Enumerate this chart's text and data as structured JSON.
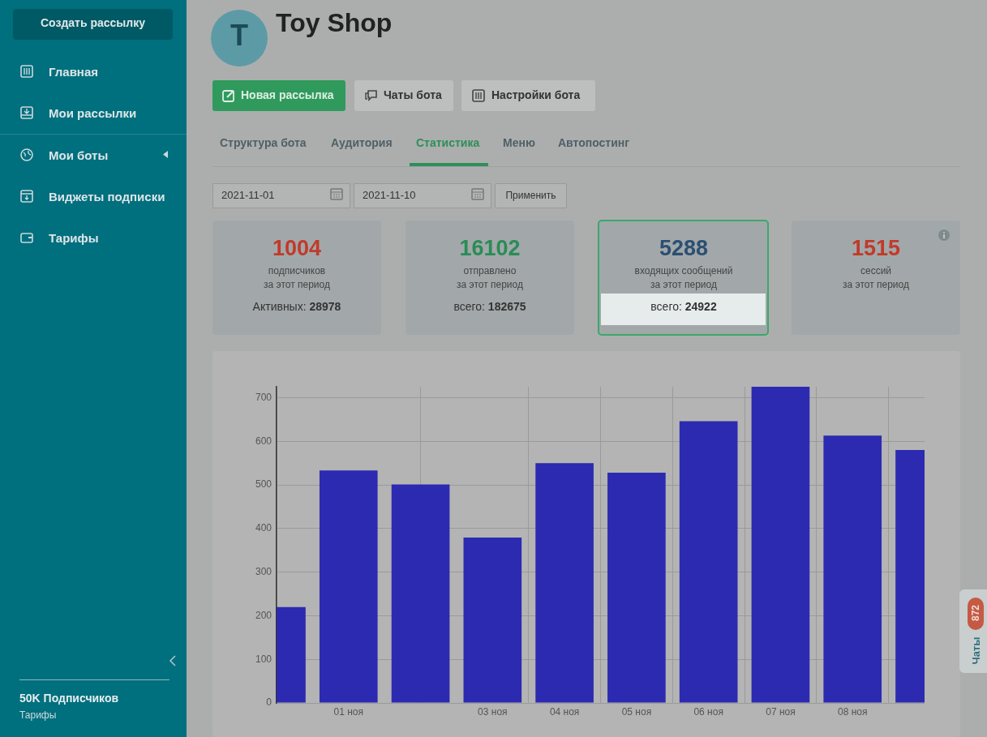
{
  "chart_data": {
    "type": "bar",
    "title": "Toy Shop",
    "annotations": [
      "Создать рассылку",
      "Главная",
      "Мои рассылки",
      "Мои боты",
      "Виджеты подписки",
      "Тарифы",
      "50K Подписчиков",
      "Тарифы",
      "T",
      "Новая рассылка",
      "Чаты бота",
      "Настройки бота",
      "Структура бота",
      "Аудитория",
      "Статистика",
      "Меню",
      "Автопостинг",
      "2021-11-01",
      "2021-11-10",
      "Применить",
      "1004",
      "подписчиков",
      "за этот период",
      "Активных:",
      "28978",
      "16102",
      "отправлено",
      "за этот период",
      "всего:",
      "182675",
      "5288",
      "входящих сообщений",
      "за этот период",
      "всего:",
      "24922",
      "1515",
      "сессий",
      "за этот период",
      "Чаты",
      "872"
    ],
    "x": [
      "2021-10-31",
      "2021-11-01",
      "2021-11-02",
      "2021-11-03",
      "2021-11-04",
      "2021-11-05",
      "2021-11-06",
      "2021-11-07",
      "2021-11-08",
      "2021-11-09"
    ],
    "values": [
      220,
      533,
      501,
      379,
      550,
      528,
      646,
      725,
      613,
      580
    ],
    "color": "#2c2ab1",
    "xlim": [
      "2021-10-31",
      "2021-11-09"
    ],
    "xticks": [
      {
        "value": "2021-11-01",
        "label": "01 ноя"
      },
      {
        "value": "2021-11-03",
        "label": "03 ноя"
      },
      {
        "value": "2021-11-04",
        "label": "04 ноя"
      },
      {
        "value": "2021-11-05",
        "label": "05 ноя"
      },
      {
        "value": "2021-11-06",
        "label": "06 ноя"
      },
      {
        "value": "2021-11-07",
        "label": "07 ноя"
      },
      {
        "value": "2021-11-08",
        "label": "08 ноя"
      }
    ],
    "ylim": [
      0,
      725
    ],
    "yticks": [
      0,
      100,
      200,
      300,
      400,
      500,
      600,
      700
    ],
    "grid": true
  }
}
